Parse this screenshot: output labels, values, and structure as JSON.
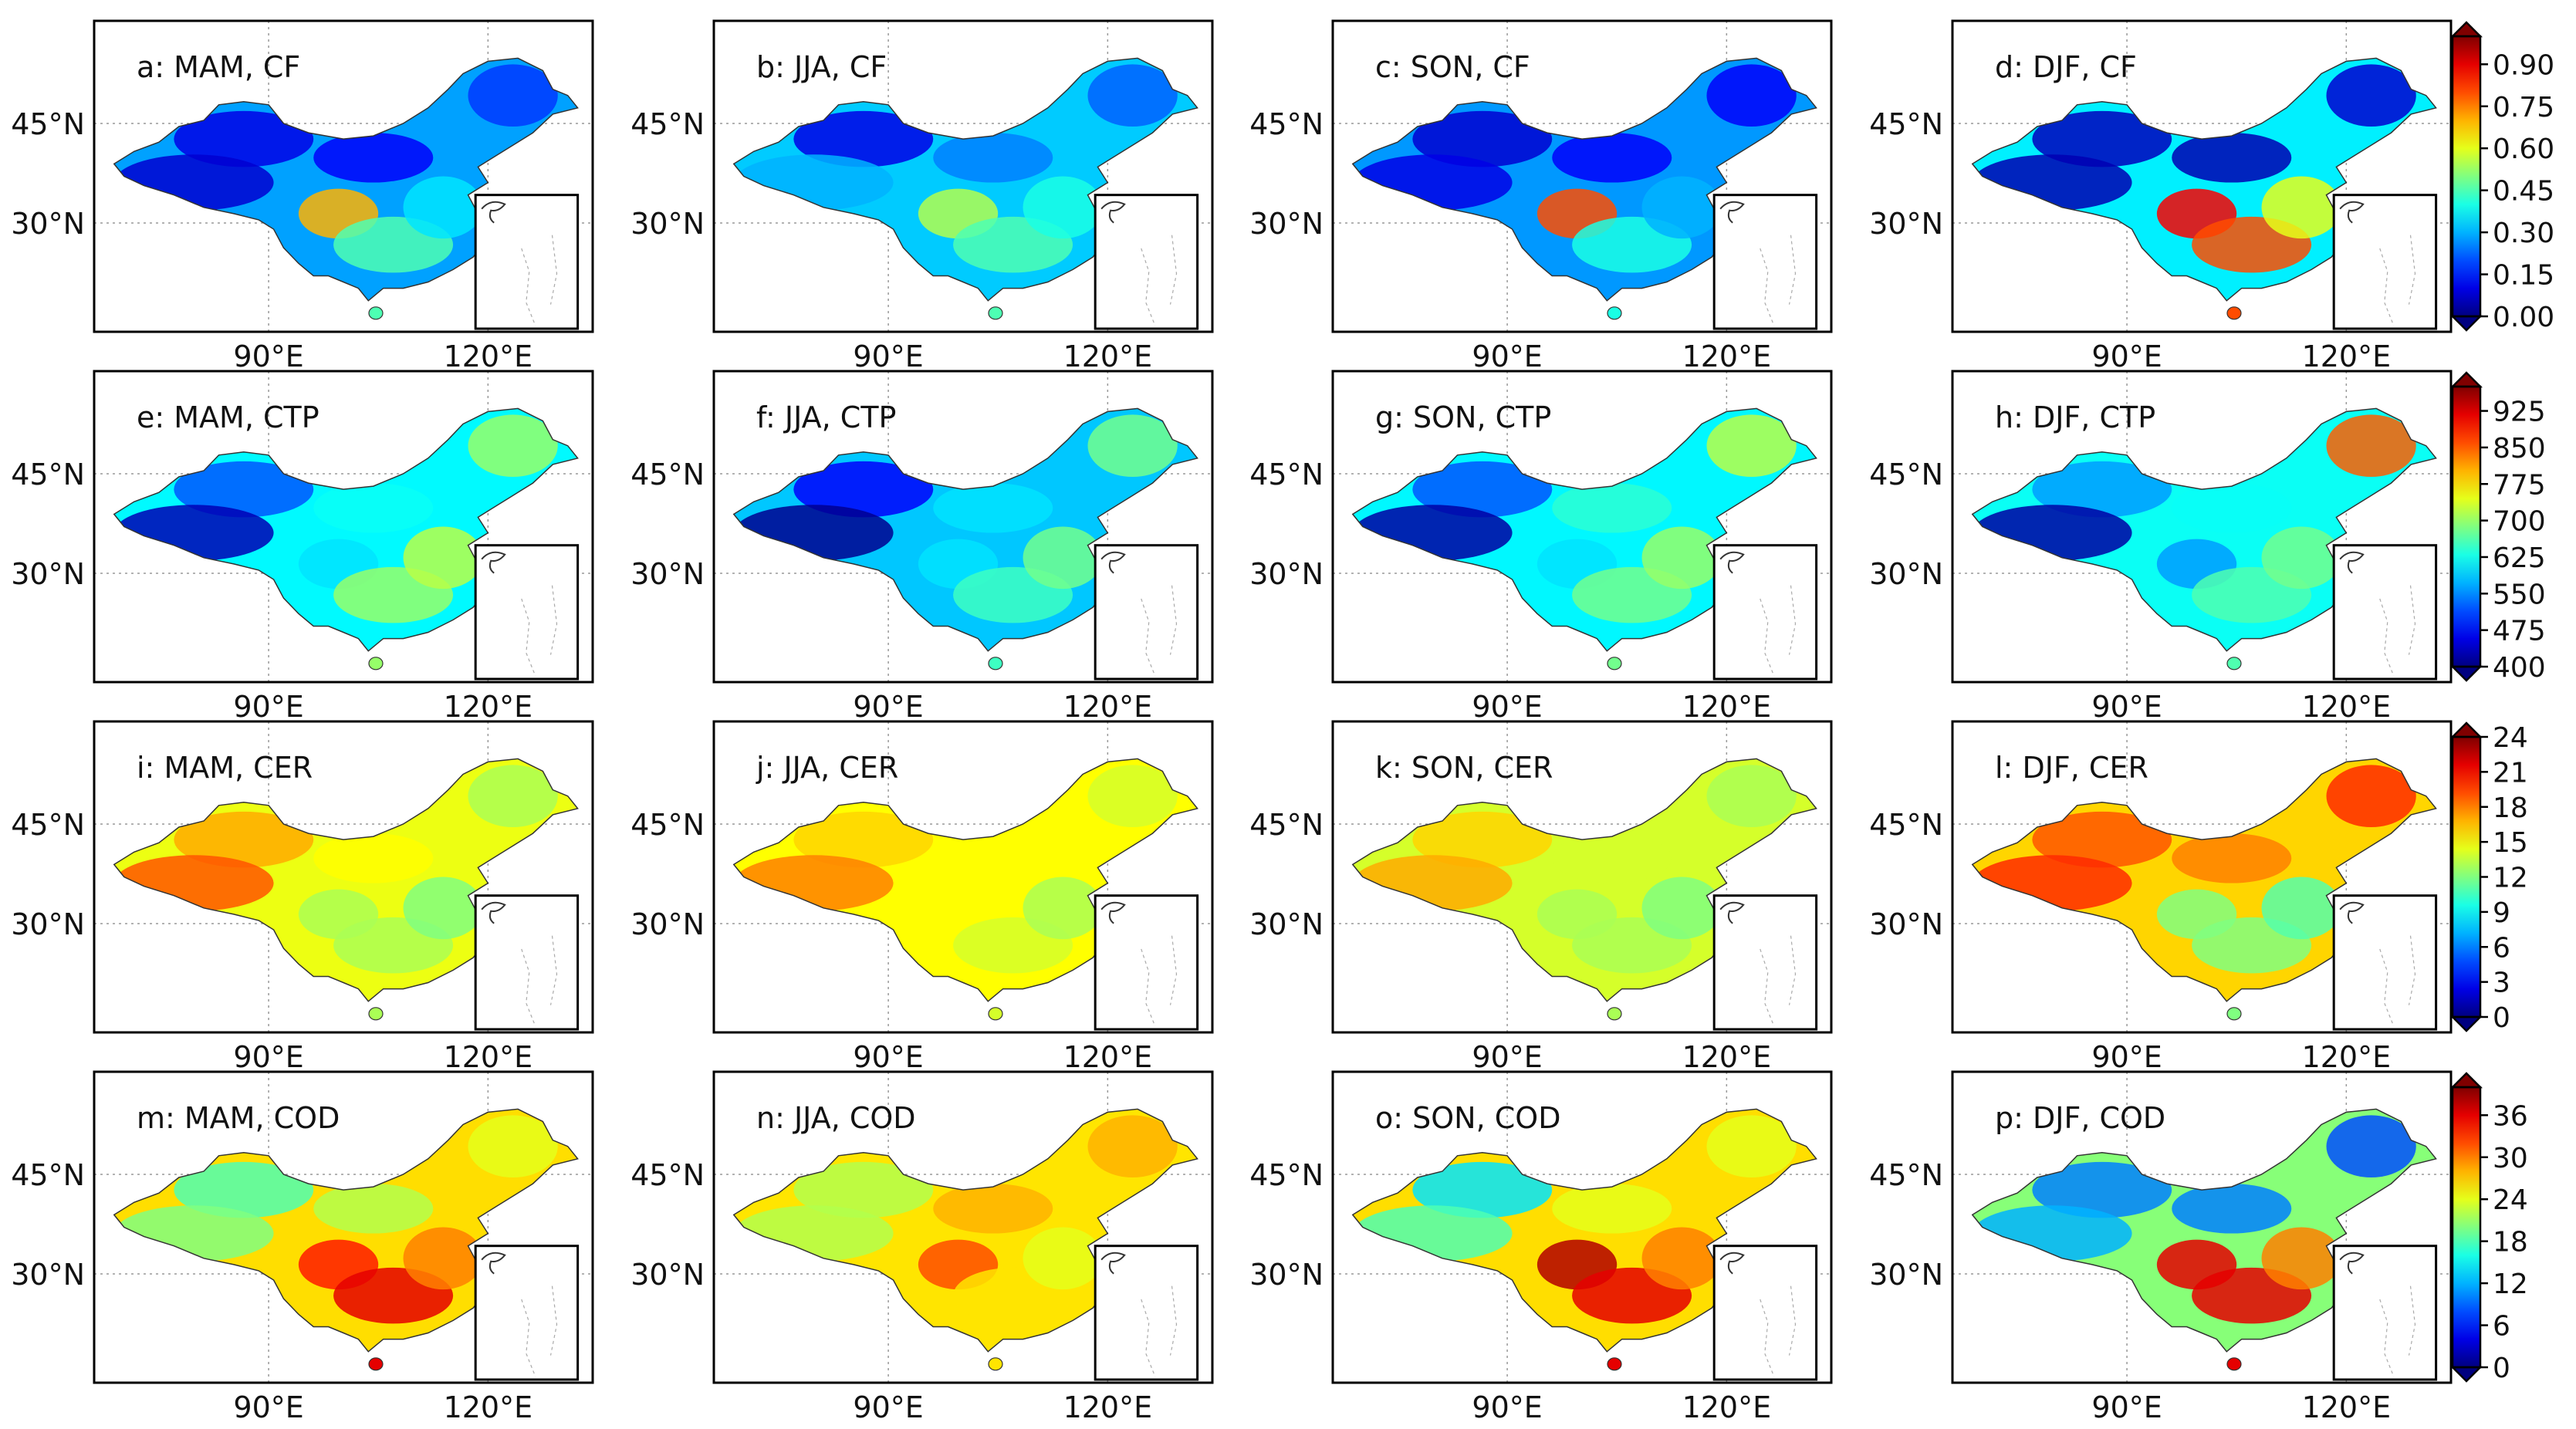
{
  "chart_data": {
    "type": "heatmap",
    "description_rows": "rows = cloud variables, columns = seasons",
    "seasons": [
      "MAM",
      "JJA",
      "SON",
      "DJF"
    ],
    "longitude_ticks": [
      "90°E",
      "120°E"
    ],
    "latitude_ticks": [
      "45°N",
      "30°N"
    ],
    "rows": [
      {
        "variable": "CF",
        "panels": [
          {
            "label": "a: MAM, CF"
          },
          {
            "label": "b: JJA, CF"
          },
          {
            "label": "c: SON, CF"
          },
          {
            "label": "d: DJF, CF"
          }
        ],
        "colorbar": {
          "min": 0.0,
          "max": 1.0,
          "ticks": [
            "0.00",
            "0.15",
            "0.30",
            "0.45",
            "0.60",
            "0.75",
            "0.90"
          ],
          "tick_values": [
            0.0,
            0.15,
            0.3,
            0.45,
            0.6,
            0.75,
            0.9
          ]
        },
        "regional_values": [
          {
            "northwest": 0.1,
            "tibet": 0.08,
            "north": 0.12,
            "northeast": 0.18,
            "sichuan": 0.7,
            "south": 0.45,
            "southeast": 0.35
          },
          {
            "northwest": 0.1,
            "tibet": 0.3,
            "north": 0.25,
            "northeast": 0.22,
            "sichuan": 0.55,
            "south": 0.45,
            "southeast": 0.4
          },
          {
            "northwest": 0.08,
            "tibet": 0.1,
            "north": 0.12,
            "northeast": 0.12,
            "sichuan": 0.8,
            "south": 0.4,
            "southeast": 0.3
          },
          {
            "northwest": 0.06,
            "tibet": 0.05,
            "north": 0.05,
            "northeast": 0.08,
            "sichuan": 0.88,
            "south": 0.8,
            "southeast": 0.6
          }
        ]
      },
      {
        "variable": "CTP",
        "panels": [
          {
            "label": "e: MAM, CTP"
          },
          {
            "label": "f: JJA, CTP"
          },
          {
            "label": "g: SON, CTP"
          },
          {
            "label": "h: DJF, CTP"
          }
        ],
        "colorbar": {
          "min": 400,
          "max": 975,
          "ticks": [
            "400",
            "475",
            "550",
            "625",
            "700",
            "775",
            "850",
            "925"
          ],
          "tick_values": [
            400,
            475,
            550,
            625,
            700,
            775,
            850,
            925
          ]
        },
        "regional_values": [
          {
            "northwest": 520,
            "tibet": 430,
            "north": 620,
            "northeast": 700,
            "sichuan": 600,
            "south": 700,
            "southeast": 720
          },
          {
            "northwest": 470,
            "tibet": 410,
            "north": 600,
            "northeast": 680,
            "sichuan": 600,
            "south": 650,
            "southeast": 680
          },
          {
            "northwest": 520,
            "tibet": 420,
            "north": 640,
            "northeast": 720,
            "sichuan": 600,
            "south": 680,
            "southeast": 700
          },
          {
            "northwest": 560,
            "tibet": 420,
            "north": 620,
            "northeast": 850,
            "sichuan": 560,
            "south": 660,
            "southeast": 680
          }
        ]
      },
      {
        "variable": "CER",
        "panels": [
          {
            "label": "i: MAM, CER"
          },
          {
            "label": "j: JJA, CER"
          },
          {
            "label": "k: SON, CER"
          },
          {
            "label": "l: DJF, CER"
          }
        ],
        "colorbar": {
          "min": 0,
          "max": 24,
          "ticks": [
            "0",
            "3",
            "6",
            "9",
            "12",
            "15",
            "18",
            "21",
            "24"
          ],
          "tick_values": [
            0,
            3,
            6,
            9,
            12,
            15,
            18,
            21,
            24
          ]
        },
        "regional_values": [
          {
            "northwest": 17,
            "tibet": 19,
            "north": 15,
            "northeast": 13,
            "sichuan": 13,
            "south": 13,
            "southeast": 12
          },
          {
            "northwest": 16,
            "tibet": 18,
            "north": 15,
            "northeast": 14,
            "sichuan": 15,
            "south": 14,
            "southeast": 13
          },
          {
            "northwest": 16,
            "tibet": 17,
            "north": 14,
            "northeast": 13,
            "sichuan": 13,
            "south": 13,
            "southeast": 12
          },
          {
            "northwest": 19,
            "tibet": 20,
            "north": 18,
            "northeast": 20,
            "sichuan": 12,
            "south": 12,
            "southeast": 11
          }
        ]
      },
      {
        "variable": "COD",
        "panels": [
          {
            "label": "m: MAM, COD"
          },
          {
            "label": "n: JJA, COD"
          },
          {
            "label": "o: SON, COD"
          },
          {
            "label": "p: DJF, COD"
          }
        ],
        "colorbar": {
          "min": 0,
          "max": 40,
          "ticks": [
            "0",
            "6",
            "12",
            "18",
            "24",
            "30",
            "36"
          ],
          "tick_values": [
            0,
            6,
            12,
            18,
            24,
            30,
            36
          ]
        },
        "regional_values": [
          {
            "northwest": 18,
            "tibet": 20,
            "north": 22,
            "northeast": 24,
            "sichuan": 34,
            "south": 36,
            "southeast": 30
          },
          {
            "northwest": 22,
            "tibet": 22,
            "north": 28,
            "northeast": 28,
            "sichuan": 32,
            "south": 26,
            "southeast": 24
          },
          {
            "northwest": 14,
            "tibet": 18,
            "north": 24,
            "northeast": 24,
            "sichuan": 38,
            "south": 36,
            "southeast": 30
          },
          {
            "northwest": 10,
            "tibet": 12,
            "north": 10,
            "northeast": 8,
            "sichuan": 36,
            "south": 36,
            "southeast": 30
          }
        ]
      }
    ]
  }
}
